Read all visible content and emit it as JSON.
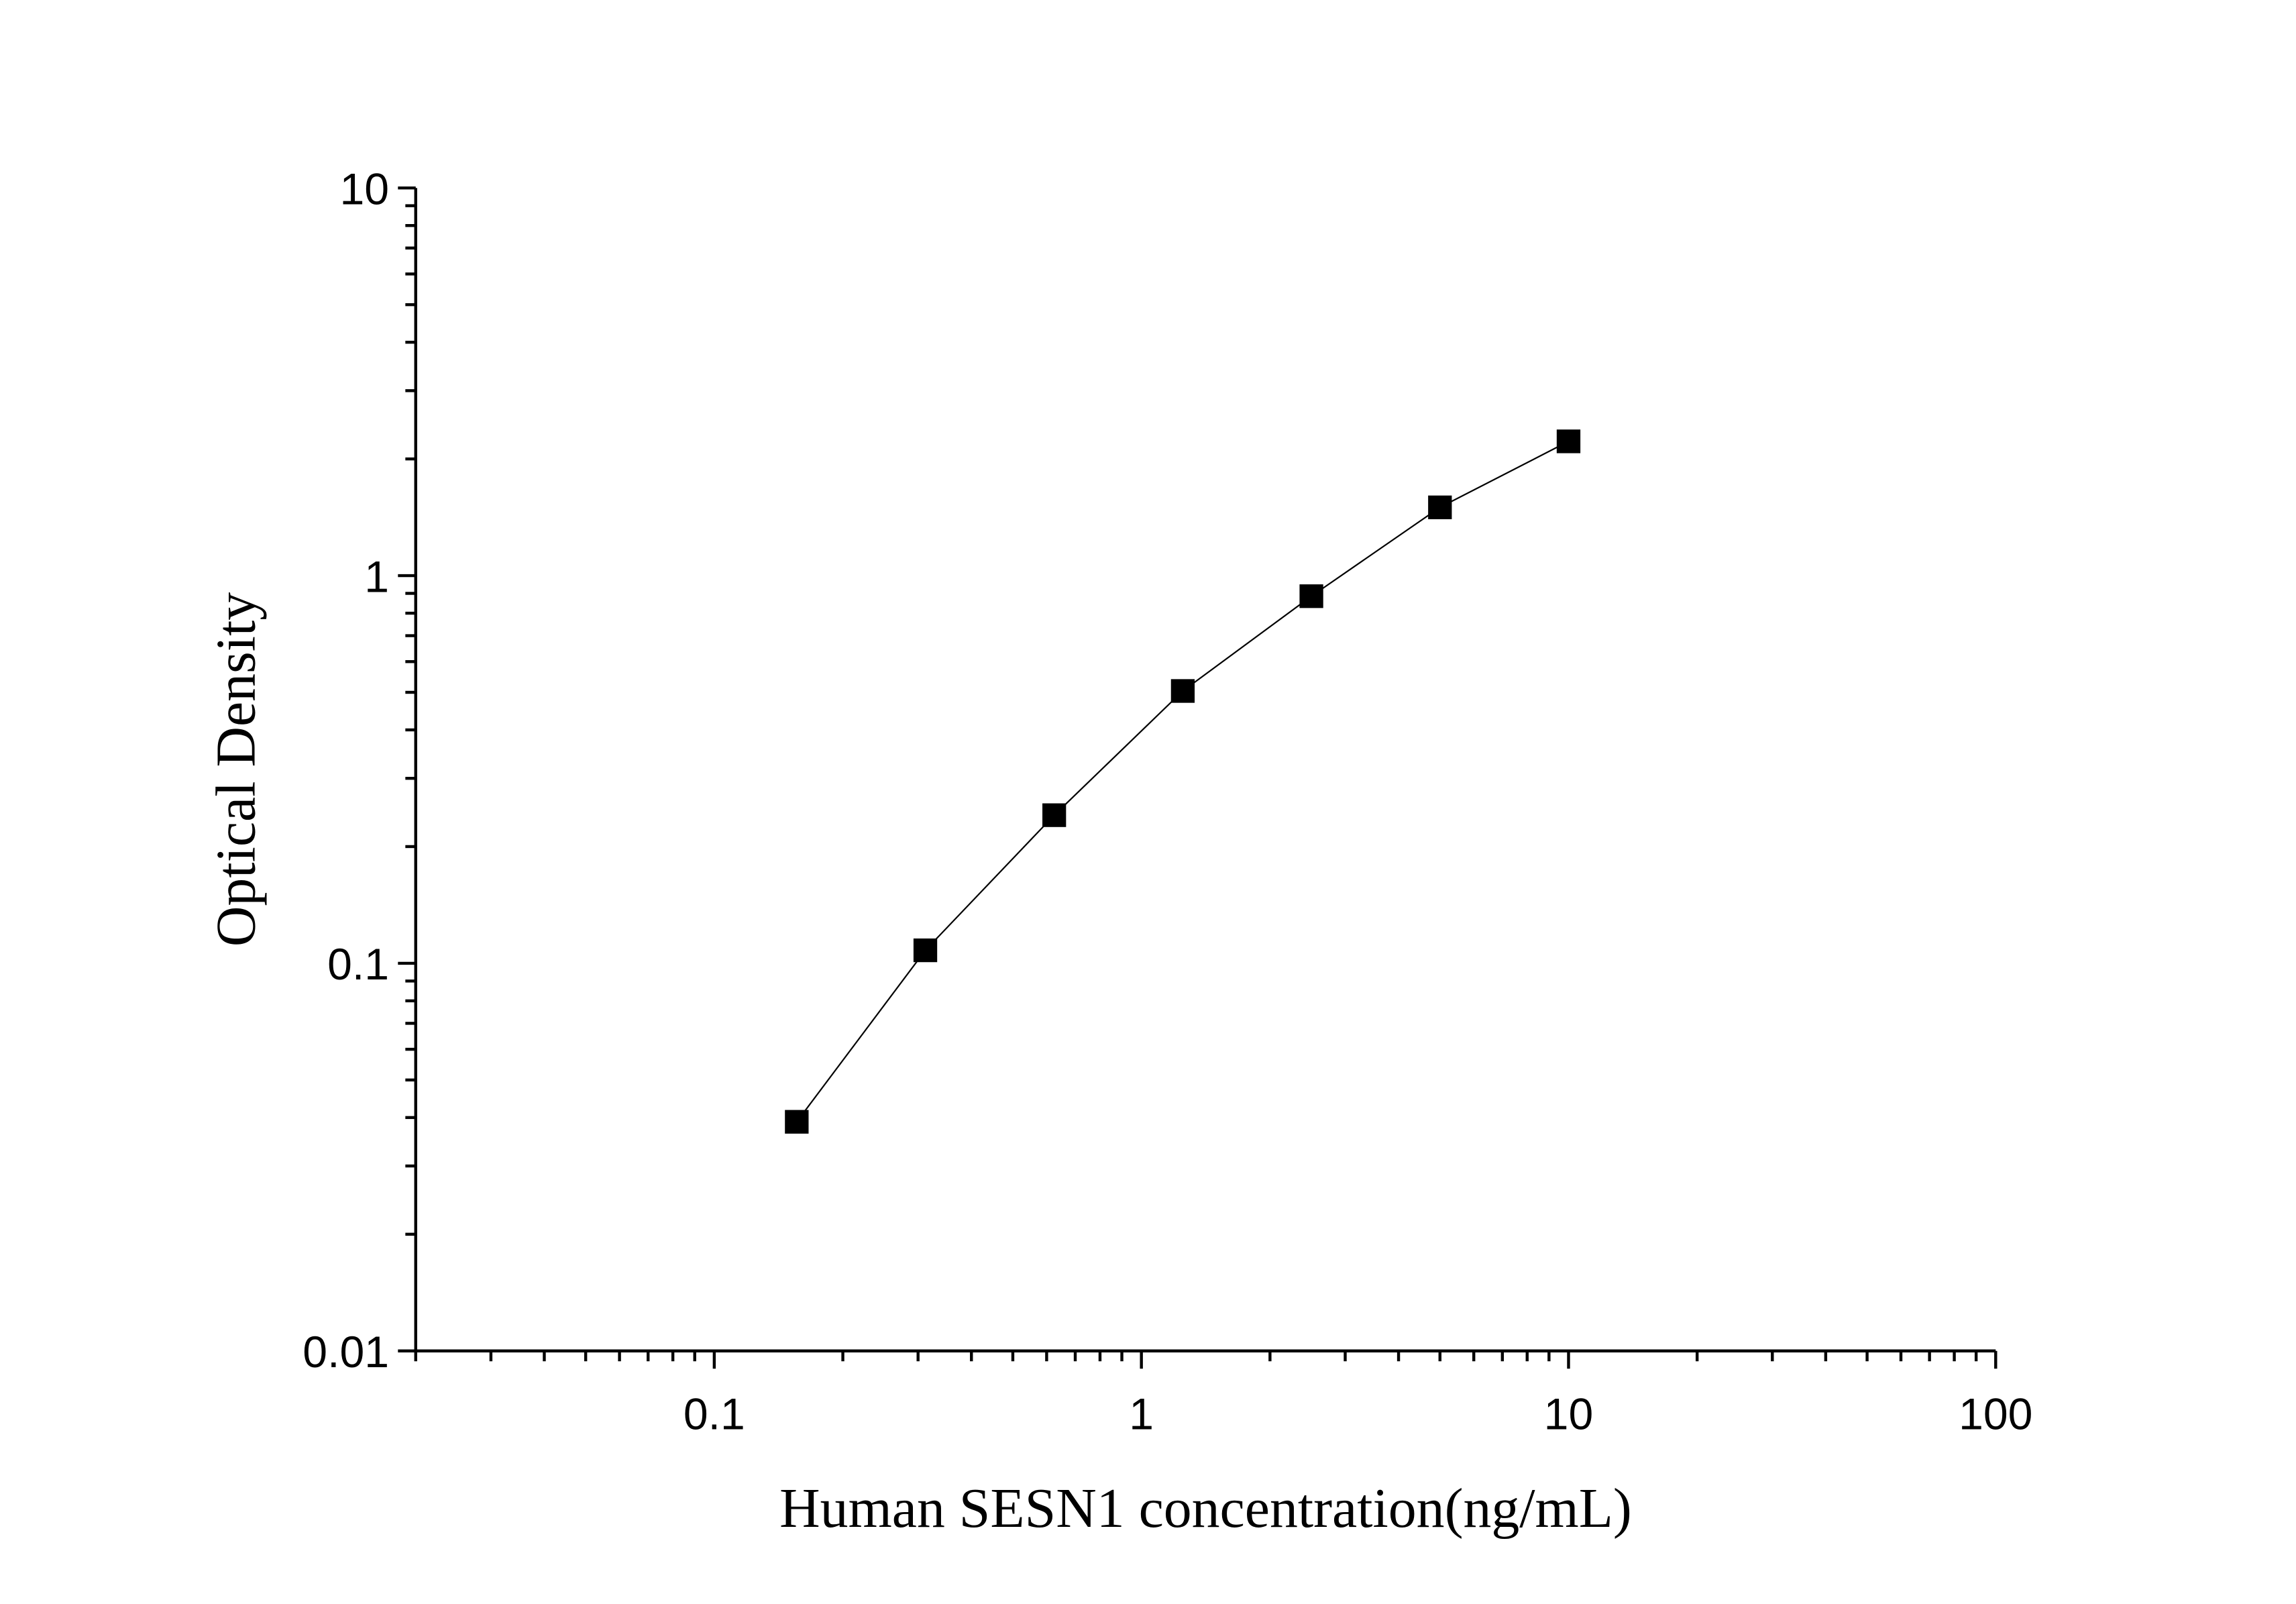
{
  "chart_data": {
    "type": "scatter",
    "title": "",
    "xlabel": "Human SESN1 concentration(ng/mL)",
    "ylabel": "Optical Density",
    "x_scale": "log",
    "y_scale": "log",
    "xlim": [
      0.02,
      100
    ],
    "ylim": [
      0.01,
      10
    ],
    "x_ticks": [
      "0.1",
      "1",
      "10",
      "100"
    ],
    "y_ticks": [
      "0.01",
      "0.1",
      "1",
      "10"
    ],
    "grid": false,
    "marker": "square",
    "line": "connected",
    "color": "#000000",
    "series": [
      {
        "x": [
          0.156,
          0.312,
          0.625,
          1.25,
          2.5,
          5,
          10
        ],
        "y": [
          0.039,
          0.108,
          0.241,
          0.504,
          0.885,
          1.5,
          2.22
        ]
      }
    ]
  }
}
